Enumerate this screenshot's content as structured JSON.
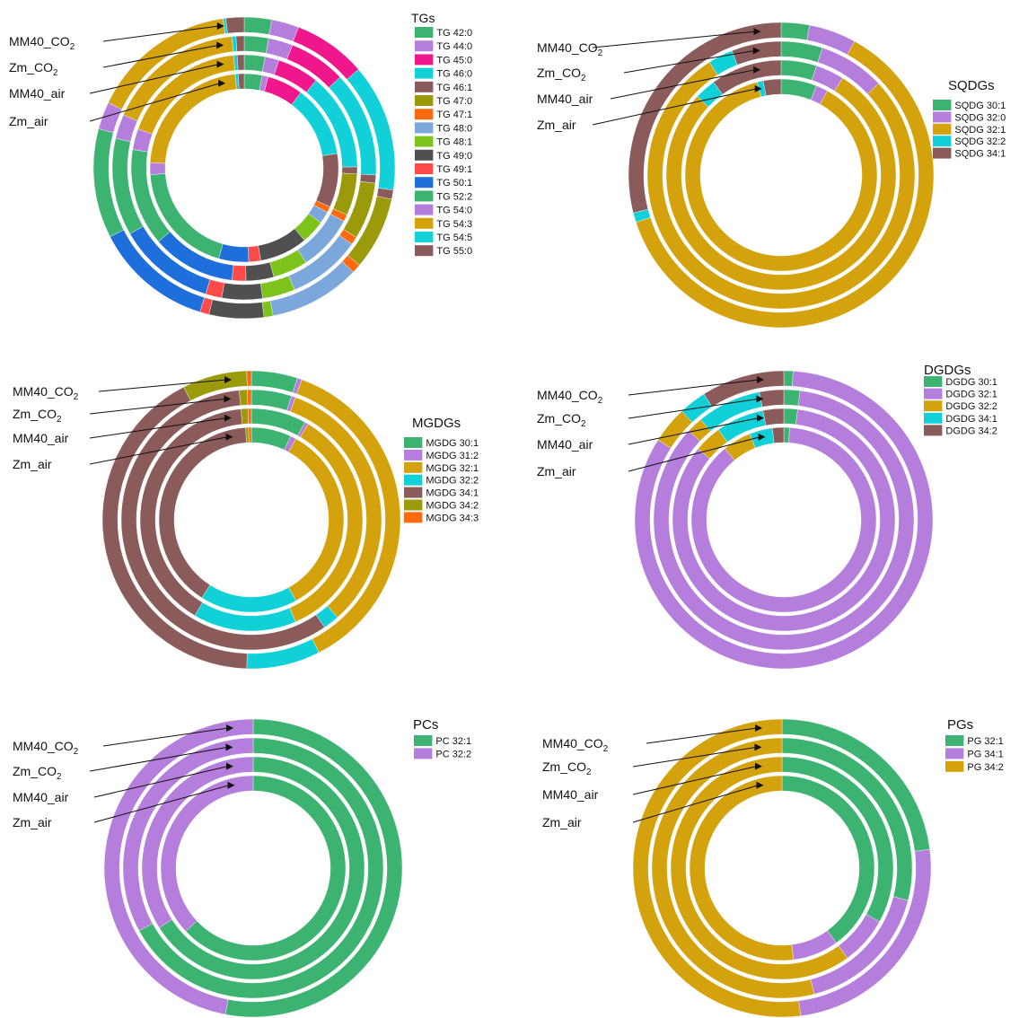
{
  "colors": {
    "green": "#3CB371",
    "purple": "#B57EDC",
    "magenta": "#F0168C",
    "cyan": "#12D0D8",
    "brown": "#8B5A5A",
    "olive": "#9A9A0A",
    "orange": "#FF6A10",
    "steelblue": "#7CA7DB",
    "lightgreen": "#7CC31C",
    "darkgray": "#505050",
    "red": "#FF4A4A",
    "blue": "#1E6FDB",
    "gold": "#D4A20C"
  },
  "chart_data": [
    {
      "type": "donut",
      "legend_title": "TGs",
      "categories": [
        "TG 42:0",
        "TG 44:0",
        "TG 45:0",
        "TG 46:0",
        "TG 46:1",
        "TG 47:0",
        "TG 47:1",
        "TG 48:0",
        "TG 48:1",
        "TG 49:0",
        "TG 49:1",
        "TG 50:1",
        "TG 52:2",
        "TG 54:0",
        "TG 54:3",
        "TG 54:5",
        "TG 55:0"
      ],
      "category_colors": [
        "green",
        "purple",
        "magenta",
        "cyan",
        "brown",
        "olive",
        "orange",
        "steelblue",
        "lightgreen",
        "darkgray",
        "red",
        "blue",
        "green",
        "purple",
        "gold",
        "cyan",
        "brown"
      ],
      "series": [
        {
          "label_text": "MM40_CO",
          "label_sub": "2",
          "values": [
            0.03,
            0.03,
            0.08,
            0.14,
            0.01,
            0.08,
            0.01,
            0.1,
            0.01,
            0.06,
            0.01,
            0.13,
            0.12,
            0.03,
            0.16,
            0.003,
            0.02
          ]
        },
        {
          "label_text": "Zm_CO",
          "label_sub": "2",
          "values": [
            0.03,
            0.03,
            0.07,
            0.13,
            0.01,
            0.07,
            0.01,
            0.09,
            0.04,
            0.05,
            0.02,
            0.12,
            0.12,
            0.03,
            0.17,
            0.005,
            0.01
          ]
        },
        {
          "label_text": "MM40_air",
          "label_sub": "",
          "values": [
            0.03,
            0.02,
            0.06,
            0.14,
            0.01,
            0.06,
            0.01,
            0.08,
            0.05,
            0.04,
            0.02,
            0.12,
            0.14,
            0.03,
            0.18,
            0.005,
            0.01
          ]
        },
        {
          "label_text": "Zm_air",
          "label_sub": "",
          "values": [
            0.03,
            0.01,
            0.06,
            0.12,
            0.09,
            0.0,
            0.01,
            0.02,
            0.04,
            0.08,
            0.02,
            0.05,
            0.19,
            0.02,
            0.22,
            0.005,
            0.01
          ]
        }
      ]
    },
    {
      "type": "donut",
      "legend_title": "SQDGs",
      "categories": [
        "SQDG 30:1",
        "SQDG 32:0",
        "SQDG 32:1",
        "SQDG 32:2",
        "SQDG 34:1"
      ],
      "category_colors": [
        "green",
        "purple",
        "gold",
        "cyan",
        "brown"
      ],
      "series": [
        {
          "label_text": "MM40_CO",
          "label_sub": "2",
          "values": [
            0.03,
            0.05,
            0.62,
            0.01,
            0.29
          ]
        },
        {
          "label_text": "Zm_CO",
          "label_sub": "2",
          "values": [
            0.05,
            0.08,
            0.78,
            0.03,
            0.06
          ]
        },
        {
          "label_text": "MM40_air",
          "label_sub": "",
          "values": [
            0.05,
            0.04,
            0.78,
            0.03,
            0.1
          ]
        },
        {
          "label_text": "Zm_air",
          "label_sub": "",
          "values": [
            0.06,
            0.02,
            0.88,
            0.01,
            0.03
          ]
        }
      ]
    },
    {
      "type": "donut",
      "legend_title": "MGDGs",
      "categories": [
        "MGDG 30:1",
        "MGDG 31:2",
        "MGDG 32:1",
        "MGDG 32:2",
        "MGDG 34:1",
        "MGDG 34:2",
        "MGDG 34:3"
      ],
      "category_colors": [
        "green",
        "purple",
        "gold",
        "cyan",
        "brown",
        "olive",
        "orange"
      ],
      "series": [
        {
          "label_text": "MM40_CO",
          "label_sub": "2",
          "values": [
            0.05,
            0.005,
            0.37,
            0.08,
            0.42,
            0.07,
            0.005
          ]
        },
        {
          "label_text": "Zm_CO",
          "label_sub": "2",
          "values": [
            0.05,
            0.005,
            0.33,
            0.02,
            0.58,
            0.01,
            0.005
          ]
        },
        {
          "label_text": "MM40_air",
          "label_sub": "",
          "values": [
            0.08,
            0.005,
            0.35,
            0.15,
            0.4,
            0.01,
            0.005
          ]
        },
        {
          "label_text": "Zm_air",
          "label_sub": "",
          "values": [
            0.07,
            0.01,
            0.34,
            0.17,
            0.4,
            0.005,
            0.005
          ]
        }
      ]
    },
    {
      "type": "donut",
      "legend_title": "DGDGs",
      "categories": [
        "DGDG 30:1",
        "DGDG 32:1",
        "DGDG 32:2",
        "DGDG 34:1",
        "DGDG 34:2"
      ],
      "category_colors": [
        "green",
        "purple",
        "gold",
        "cyan",
        "brown"
      ],
      "series": [
        {
          "label_text": "MM40_CO",
          "label_sub": "2",
          "values": [
            0.01,
            0.83,
            0.04,
            0.03,
            0.09
          ]
        },
        {
          "label_text": "Zm_CO",
          "label_sub": "2",
          "values": [
            0.02,
            0.85,
            0.02,
            0.08,
            0.03
          ]
        },
        {
          "label_text": "MM40_air",
          "label_sub": "",
          "values": [
            0.02,
            0.84,
            0.04,
            0.07,
            0.03
          ]
        },
        {
          "label_text": "Zm_air",
          "label_sub": "",
          "values": [
            0.01,
            0.88,
            0.05,
            0.04,
            0.02
          ]
        }
      ]
    },
    {
      "type": "donut",
      "legend_title": "PCs",
      "categories": [
        "PC 32:1",
        "PC 32:2"
      ],
      "category_colors": [
        "green",
        "purple"
      ],
      "series": [
        {
          "label_text": "MM40_CO",
          "label_sub": "2",
          "values": [
            0.53,
            0.47
          ]
        },
        {
          "label_text": "Zm_CO",
          "label_sub": "2",
          "values": [
            0.67,
            0.33
          ]
        },
        {
          "label_text": "MM40_air",
          "label_sub": "",
          "values": [
            0.66,
            0.34
          ]
        },
        {
          "label_text": "Zm_air",
          "label_sub": "",
          "values": [
            0.63,
            0.37
          ]
        }
      ]
    },
    {
      "type": "donut",
      "legend_title": "PGs",
      "categories": [
        "PG 32:1",
        "PG 34:1",
        "PG 34:2"
      ],
      "category_colors": [
        "green",
        "purple",
        "gold"
      ],
      "series": [
        {
          "label_text": "MM40_CO",
          "label_sub": "2",
          "values": [
            0.23,
            0.25,
            0.52
          ]
        },
        {
          "label_text": "Zm_CO",
          "label_sub": "2",
          "values": [
            0.29,
            0.17,
            0.54
          ]
        },
        {
          "label_text": "MM40_air",
          "label_sub": "",
          "values": [
            0.33,
            0.07,
            0.6
          ]
        },
        {
          "label_text": "Zm_air",
          "label_sub": "",
          "values": [
            0.4,
            0.08,
            0.52
          ]
        }
      ]
    }
  ]
}
